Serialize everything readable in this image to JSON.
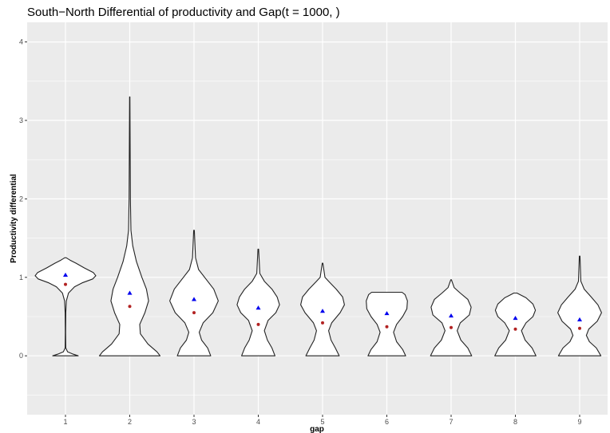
{
  "chart_data": {
    "type": "violin",
    "title": "South−North Differential of productivity and Gap(t = 1000, )",
    "xlabel": "gap",
    "ylabel": "Productivity differential",
    "categories": [
      "1",
      "2",
      "3",
      "4",
      "5",
      "6",
      "7",
      "8",
      "9"
    ],
    "ylim": [
      -0.75,
      4.25
    ],
    "yticks": [
      0,
      1,
      2,
      3,
      4
    ],
    "grid": true,
    "colors": {
      "panel": "#ebebeb",
      "grid": "#ffffff",
      "violin_fill": "#ffffff",
      "violin_stroke": "#222222",
      "mean_marker": "#0000ee",
      "median_marker": "#b22222"
    },
    "mean_marker": "blue-triangle",
    "median_marker": "red-dot",
    "violins": [
      {
        "gap": "1",
        "min": 0.0,
        "max": 1.25,
        "mean": 1.03,
        "median": 0.91,
        "profile": [
          [
            0,
            0.42
          ],
          [
            0.02,
            0.26
          ],
          [
            0.05,
            0.07
          ],
          [
            0.1,
            0.01
          ],
          [
            0.3,
            0.005
          ],
          [
            0.55,
            0.01
          ],
          [
            0.7,
            0.03
          ],
          [
            0.8,
            0.1
          ],
          [
            0.88,
            0.3
          ],
          [
            0.93,
            0.55
          ],
          [
            0.98,
            0.9
          ],
          [
            1.02,
            1.0
          ],
          [
            1.06,
            0.92
          ],
          [
            1.12,
            0.62
          ],
          [
            1.18,
            0.35
          ],
          [
            1.22,
            0.15
          ],
          [
            1.25,
            0.02
          ]
        ]
      },
      {
        "gap": "2",
        "min": 0.0,
        "max": 3.3,
        "mean": 0.8,
        "median": 0.63,
        "profile": [
          [
            0,
            1.0
          ],
          [
            0.05,
            0.9
          ],
          [
            0.15,
            0.6
          ],
          [
            0.28,
            0.35
          ],
          [
            0.4,
            0.33
          ],
          [
            0.55,
            0.5
          ],
          [
            0.7,
            0.62
          ],
          [
            0.85,
            0.55
          ],
          [
            1.0,
            0.4
          ],
          [
            1.2,
            0.22
          ],
          [
            1.4,
            0.1
          ],
          [
            1.6,
            0.04
          ],
          [
            2.0,
            0.02
          ],
          [
            3.3,
            0.005
          ]
        ]
      },
      {
        "gap": "3",
        "min": 0.0,
        "max": 1.6,
        "mean": 0.72,
        "median": 0.55,
        "profile": [
          [
            0,
            0.55
          ],
          [
            0.1,
            0.45
          ],
          [
            0.2,
            0.25
          ],
          [
            0.3,
            0.17
          ],
          [
            0.42,
            0.3
          ],
          [
            0.55,
            0.62
          ],
          [
            0.7,
            0.8
          ],
          [
            0.85,
            0.65
          ],
          [
            1.0,
            0.35
          ],
          [
            1.1,
            0.15
          ],
          [
            1.25,
            0.05
          ],
          [
            1.6,
            0.01
          ]
        ]
      },
      {
        "gap": "4",
        "min": 0.0,
        "max": 1.36,
        "mean": 0.61,
        "median": 0.4,
        "profile": [
          [
            0,
            0.55
          ],
          [
            0.1,
            0.45
          ],
          [
            0.2,
            0.3
          ],
          [
            0.32,
            0.2
          ],
          [
            0.45,
            0.32
          ],
          [
            0.55,
            0.58
          ],
          [
            0.65,
            0.7
          ],
          [
            0.75,
            0.62
          ],
          [
            0.85,
            0.45
          ],
          [
            0.95,
            0.2
          ],
          [
            1.05,
            0.05
          ],
          [
            1.36,
            0.01
          ]
        ]
      },
      {
        "gap": "5",
        "min": 0.0,
        "max": 1.18,
        "mean": 0.57,
        "median": 0.42,
        "profile": [
          [
            0,
            0.55
          ],
          [
            0.1,
            0.42
          ],
          [
            0.2,
            0.28
          ],
          [
            0.32,
            0.2
          ],
          [
            0.42,
            0.3
          ],
          [
            0.55,
            0.58
          ],
          [
            0.65,
            0.72
          ],
          [
            0.75,
            0.66
          ],
          [
            0.85,
            0.45
          ],
          [
            0.95,
            0.2
          ],
          [
            1.0,
            0.08
          ],
          [
            1.18,
            0.01
          ]
        ]
      },
      {
        "gap": "6",
        "min": 0.0,
        "max": 0.81,
        "mean": 0.54,
        "median": 0.37,
        "profile": [
          [
            0,
            0.62
          ],
          [
            0.08,
            0.52
          ],
          [
            0.18,
            0.32
          ],
          [
            0.3,
            0.22
          ],
          [
            0.4,
            0.32
          ],
          [
            0.5,
            0.52
          ],
          [
            0.6,
            0.66
          ],
          [
            0.7,
            0.68
          ],
          [
            0.78,
            0.6
          ],
          [
            0.81,
            0.5
          ]
        ]
      },
      {
        "gap": "7",
        "min": 0.0,
        "max": 0.97,
        "mean": 0.51,
        "median": 0.36,
        "profile": [
          [
            0,
            0.68
          ],
          [
            0.1,
            0.55
          ],
          [
            0.2,
            0.32
          ],
          [
            0.32,
            0.2
          ],
          [
            0.42,
            0.3
          ],
          [
            0.52,
            0.6
          ],
          [
            0.62,
            0.66
          ],
          [
            0.72,
            0.55
          ],
          [
            0.8,
            0.3
          ],
          [
            0.87,
            0.1
          ],
          [
            0.97,
            0.01
          ]
        ]
      },
      {
        "gap": "8",
        "min": 0.0,
        "max": 0.8,
        "mean": 0.48,
        "median": 0.34,
        "profile": [
          [
            0,
            0.68
          ],
          [
            0.1,
            0.55
          ],
          [
            0.2,
            0.32
          ],
          [
            0.32,
            0.2
          ],
          [
            0.42,
            0.35
          ],
          [
            0.5,
            0.58
          ],
          [
            0.58,
            0.66
          ],
          [
            0.66,
            0.58
          ],
          [
            0.74,
            0.35
          ],
          [
            0.8,
            0.05
          ]
        ]
      },
      {
        "gap": "9",
        "min": 0.0,
        "max": 1.27,
        "mean": 0.46,
        "median": 0.35,
        "profile": [
          [
            0,
            0.7
          ],
          [
            0.1,
            0.55
          ],
          [
            0.18,
            0.32
          ],
          [
            0.26,
            0.22
          ],
          [
            0.34,
            0.3
          ],
          [
            0.44,
            0.58
          ],
          [
            0.55,
            0.72
          ],
          [
            0.65,
            0.6
          ],
          [
            0.75,
            0.38
          ],
          [
            0.85,
            0.15
          ],
          [
            0.95,
            0.04
          ],
          [
            1.27,
            0.01
          ]
        ]
      }
    ]
  }
}
